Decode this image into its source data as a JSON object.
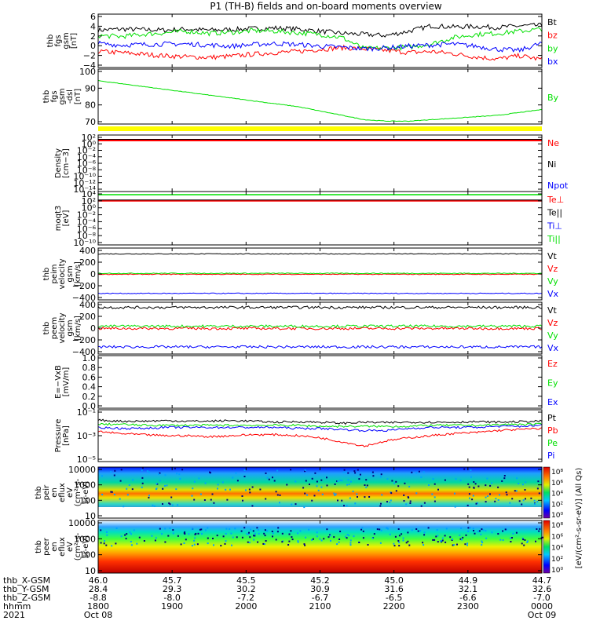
{
  "title": "P1 (TH-B) fields and on-board moments overview",
  "colors": {
    "black": "#000000",
    "red": "#ff0000",
    "green": "#00e000",
    "blue": "#0000ff",
    "yellow": "#ffff00"
  },
  "chart_data": {
    "type": "line",
    "x_axis": {
      "tick_labels": [
        "1800",
        "1900",
        "2000",
        "2100",
        "2200",
        "2300",
        "0000"
      ],
      "row_labels": [
        "thb_X-GSM",
        "thb_Y-GSM",
        "thb_Z-GSM",
        "hhmm",
        "2021"
      ],
      "rows": {
        "X": [
          "46.0",
          "45.7",
          "45.5",
          "45.2",
          "45.0",
          "44.9",
          "44.7"
        ],
        "Y": [
          "28.4",
          "29.3",
          "30.2",
          "30.9",
          "31.6",
          "32.1",
          "32.6"
        ],
        "Z": [
          "-8.8",
          "-8.0",
          "-7.2",
          "-6.7",
          "-6.5",
          "-6.6",
          "-7.0"
        ]
      },
      "dates": [
        "Oct 08",
        "Oct 09"
      ]
    },
    "panels": [
      {
        "id": "fgs",
        "ylabel": [
          "thb",
          "fgs",
          "gsm",
          "[nT]"
        ],
        "ticks": [
          "6",
          "4",
          "2",
          "0",
          "−2",
          "−4"
        ],
        "ylim": [
          -4,
          6
        ],
        "series": [
          {
            "name": "Bt",
            "color": "#000000",
            "values": [
              3.0,
              3.2,
              3.1,
              3.0,
              3.2,
              3.0,
              3.1,
              3.3,
              3.4,
              3.2,
              2.8,
              2.4,
              2.2,
              2.0,
              2.8,
              3.8,
              3.6,
              3.7,
              3.5,
              3.8,
              3.9
            ]
          },
          {
            "name": "bz",
            "color": "#ff0000",
            "values": [
              -1.0,
              -1.2,
              -1.5,
              -1.8,
              -2.0,
              -2.1,
              -1.9,
              -1.5,
              -1.2,
              -1.0,
              -0.6,
              -0.3,
              -0.5,
              -0.8,
              -1.2,
              -1.0,
              -1.4,
              -2.0,
              -2.4,
              -1.8,
              -2.5
            ]
          },
          {
            "name": "by",
            "color": "#00e000",
            "values": [
              2.0,
              1.8,
              2.2,
              2.5,
              2.8,
              2.4,
              2.6,
              2.9,
              2.8,
              2.5,
              2.2,
              1.6,
              -0.5,
              -0.3,
              -0.2,
              0.4,
              1.6,
              2.2,
              2.4,
              2.8,
              3.2
            ]
          },
          {
            "name": "bx",
            "color": "#0000ff",
            "values": [
              0.5,
              0.2,
              0.3,
              0.4,
              0.4,
              0.2,
              0.0,
              0.3,
              0.5,
              0.3,
              0.0,
              -0.2,
              -0.5,
              -0.3,
              0.0,
              0.2,
              0.4,
              0.0,
              -0.6,
              -0.8,
              0.6
            ]
          }
        ]
      },
      {
        "id": "fgs_dsl",
        "ylabel": [
          "thb",
          "fgs",
          "gsm",
          "-dsl",
          "[nT]"
        ],
        "ticks": [
          "100",
          "90",
          "80",
          "70"
        ],
        "ylim": [
          63,
          101
        ],
        "series": [
          {
            "name": "By",
            "color": "#00e000",
            "values": [
              93,
              91,
              89,
              87,
              85,
              83,
              81,
              79,
              77,
              75,
              72,
              69,
              66,
              65,
              65,
              66,
              67,
              68,
              69,
              71,
              73
            ]
          }
        ]
      },
      {
        "id": "density",
        "ylabel": [
          "Density",
          "[cm−3]"
        ],
        "ticks": [
          "10²",
          "10⁰",
          "10⁻²",
          "10⁻⁴",
          "10⁻⁶",
          "10⁻⁸",
          "10⁻¹⁰",
          "10⁻¹²",
          "10⁻¹⁴"
        ],
        "scale": "log",
        "series": [
          {
            "name": "Ne",
            "color": "#ff0000"
          },
          {
            "name": "Ni",
            "color": "#000000"
          },
          {
            "name": "Npot",
            "color": "#0000ff"
          }
        ]
      },
      {
        "id": "temp",
        "ylabel": [
          "moqt3",
          "[eV]"
        ],
        "ticks": [
          "10⁴",
          "10²",
          "10⁰",
          "10⁻²",
          "10⁻⁴",
          "10⁻⁶",
          "10⁻⁸",
          "10⁻¹⁰"
        ],
        "scale": "log",
        "series": [
          {
            "name": "Te⊥",
            "color": "#ff0000"
          },
          {
            "name": "Te||",
            "color": "#000000"
          },
          {
            "name": "Ti⊥",
            "color": "#0000ff"
          },
          {
            "name": "Ti||",
            "color": "#00e000"
          }
        ]
      },
      {
        "id": "peim",
        "ylabel": [
          "thb",
          "peim",
          "velocity",
          "gsm",
          "[km/s]"
        ],
        "ticks": [
          "400",
          "200",
          "0",
          "−200",
          "−400"
        ],
        "ylim": [
          -400,
          400
        ],
        "series": [
          {
            "name": "Vt",
            "color": "#000000",
            "level": 310
          },
          {
            "name": "Vz",
            "color": "#ff0000",
            "level": -5
          },
          {
            "name": "Vy",
            "color": "#00e000",
            "level": 10
          },
          {
            "name": "Vx",
            "color": "#0000ff",
            "level": -300
          }
        ]
      },
      {
        "id": "peem",
        "ylabel": [
          "thb",
          "peem",
          "velocity",
          "gsm",
          "[km/s]"
        ],
        "ticks": [
          "400",
          "200",
          "0",
          "−200",
          "−400"
        ],
        "ylim": [
          -400,
          400
        ],
        "series": [
          {
            "name": "Vt",
            "color": "#000000",
            "level": 320
          },
          {
            "name": "Vz",
            "color": "#ff0000",
            "level": -5
          },
          {
            "name": "Vy",
            "color": "#00e000",
            "level": 30
          },
          {
            "name": "Vx",
            "color": "#0000ff",
            "level": -290
          }
        ]
      },
      {
        "id": "efield",
        "ylabel": [
          "E=−VxB",
          "[mV/m]"
        ],
        "ticks": [
          "1.0",
          "0.8",
          "0.6",
          "0.4",
          "0.2",
          "0.0"
        ],
        "ylim": [
          0,
          1
        ],
        "series": [
          {
            "name": "Ez",
            "color": "#ff0000"
          },
          {
            "name": "Ey",
            "color": "#00e000"
          },
          {
            "name": "Ex",
            "color": "#0000ff"
          }
        ]
      },
      {
        "id": "pressure",
        "ylabel": [
          "Pressure",
          "[nPa]"
        ],
        "ticks": [
          "10⁻¹",
          "10⁻³",
          "10⁻⁵"
        ],
        "scale": "log",
        "series": [
          {
            "name": "Pt",
            "color": "#000000",
            "values": [
              -1.5,
              -1.6,
              -1.6,
              -1.55,
              -1.6,
              -1.6,
              -1.55,
              -1.6,
              -1.7,
              -1.65,
              -1.7,
              -1.8,
              -1.7,
              -1.75,
              -1.7,
              -1.7,
              -1.7,
              -1.65,
              -1.7,
              -1.65,
              -1.6
            ]
          },
          {
            "name": "Pb",
            "color": "#ff0000",
            "values": [
              -2.6,
              -2.8,
              -2.9,
              -3.0,
              -3.0,
              -3.1,
              -3.0,
              -2.9,
              -2.9,
              -3.0,
              -3.2,
              -3.6,
              -4.0,
              -3.5,
              -3.2,
              -3.0,
              -2.8,
              -2.7,
              -2.5,
              -2.4,
              -2.3
            ]
          },
          {
            "name": "Pe",
            "color": "#00e000",
            "values": [
              -1.9,
              -1.9,
              -2.0,
              -2.0,
              -2.0,
              -2.0,
              -2.0,
              -2.0,
              -2.0,
              -2.0,
              -2.1,
              -2.1,
              -2.1,
              -2.1,
              -2.1,
              -2.0,
              -2.0,
              -2.0,
              -1.95,
              -1.9,
              -1.9
            ]
          },
          {
            "name": "Pi",
            "color": "#0000ff",
            "values": [
              -2.2,
              -2.3,
              -2.3,
              -2.2,
              -2.2,
              -2.2,
              -2.2,
              -2.2,
              -2.2,
              -2.3,
              -2.3,
              -2.4,
              -2.5,
              -2.5,
              -2.3,
              -2.2,
              -2.2,
              -2.2,
              -2.1,
              -2.1,
              -2.0
            ]
          }
        ]
      },
      {
        "id": "peir",
        "type": "heatmap",
        "ylabel": [
          "thb",
          "peir",
          "en",
          "eflux",
          "eV",
          "(cm²-s-",
          "sr-eV)"
        ],
        "ticks": [
          "10000",
          "1000",
          "100",
          "10"
        ],
        "scale": "log"
      },
      {
        "id": "peer",
        "type": "heatmap",
        "ylabel": [
          "thb",
          "peer",
          "en",
          "eflux",
          "eV",
          "(cm²-s-",
          "sr-eV)"
        ],
        "ticks": [
          "10000",
          "1000",
          "100",
          "10"
        ],
        "scale": "log"
      }
    ],
    "colorbar": {
      "ticks": [
        "10⁸",
        "10⁶",
        "10⁴",
        "10²",
        "10⁰"
      ],
      "label": "[eV/(cm²-s-sr-eV)] (All Qs)"
    }
  }
}
